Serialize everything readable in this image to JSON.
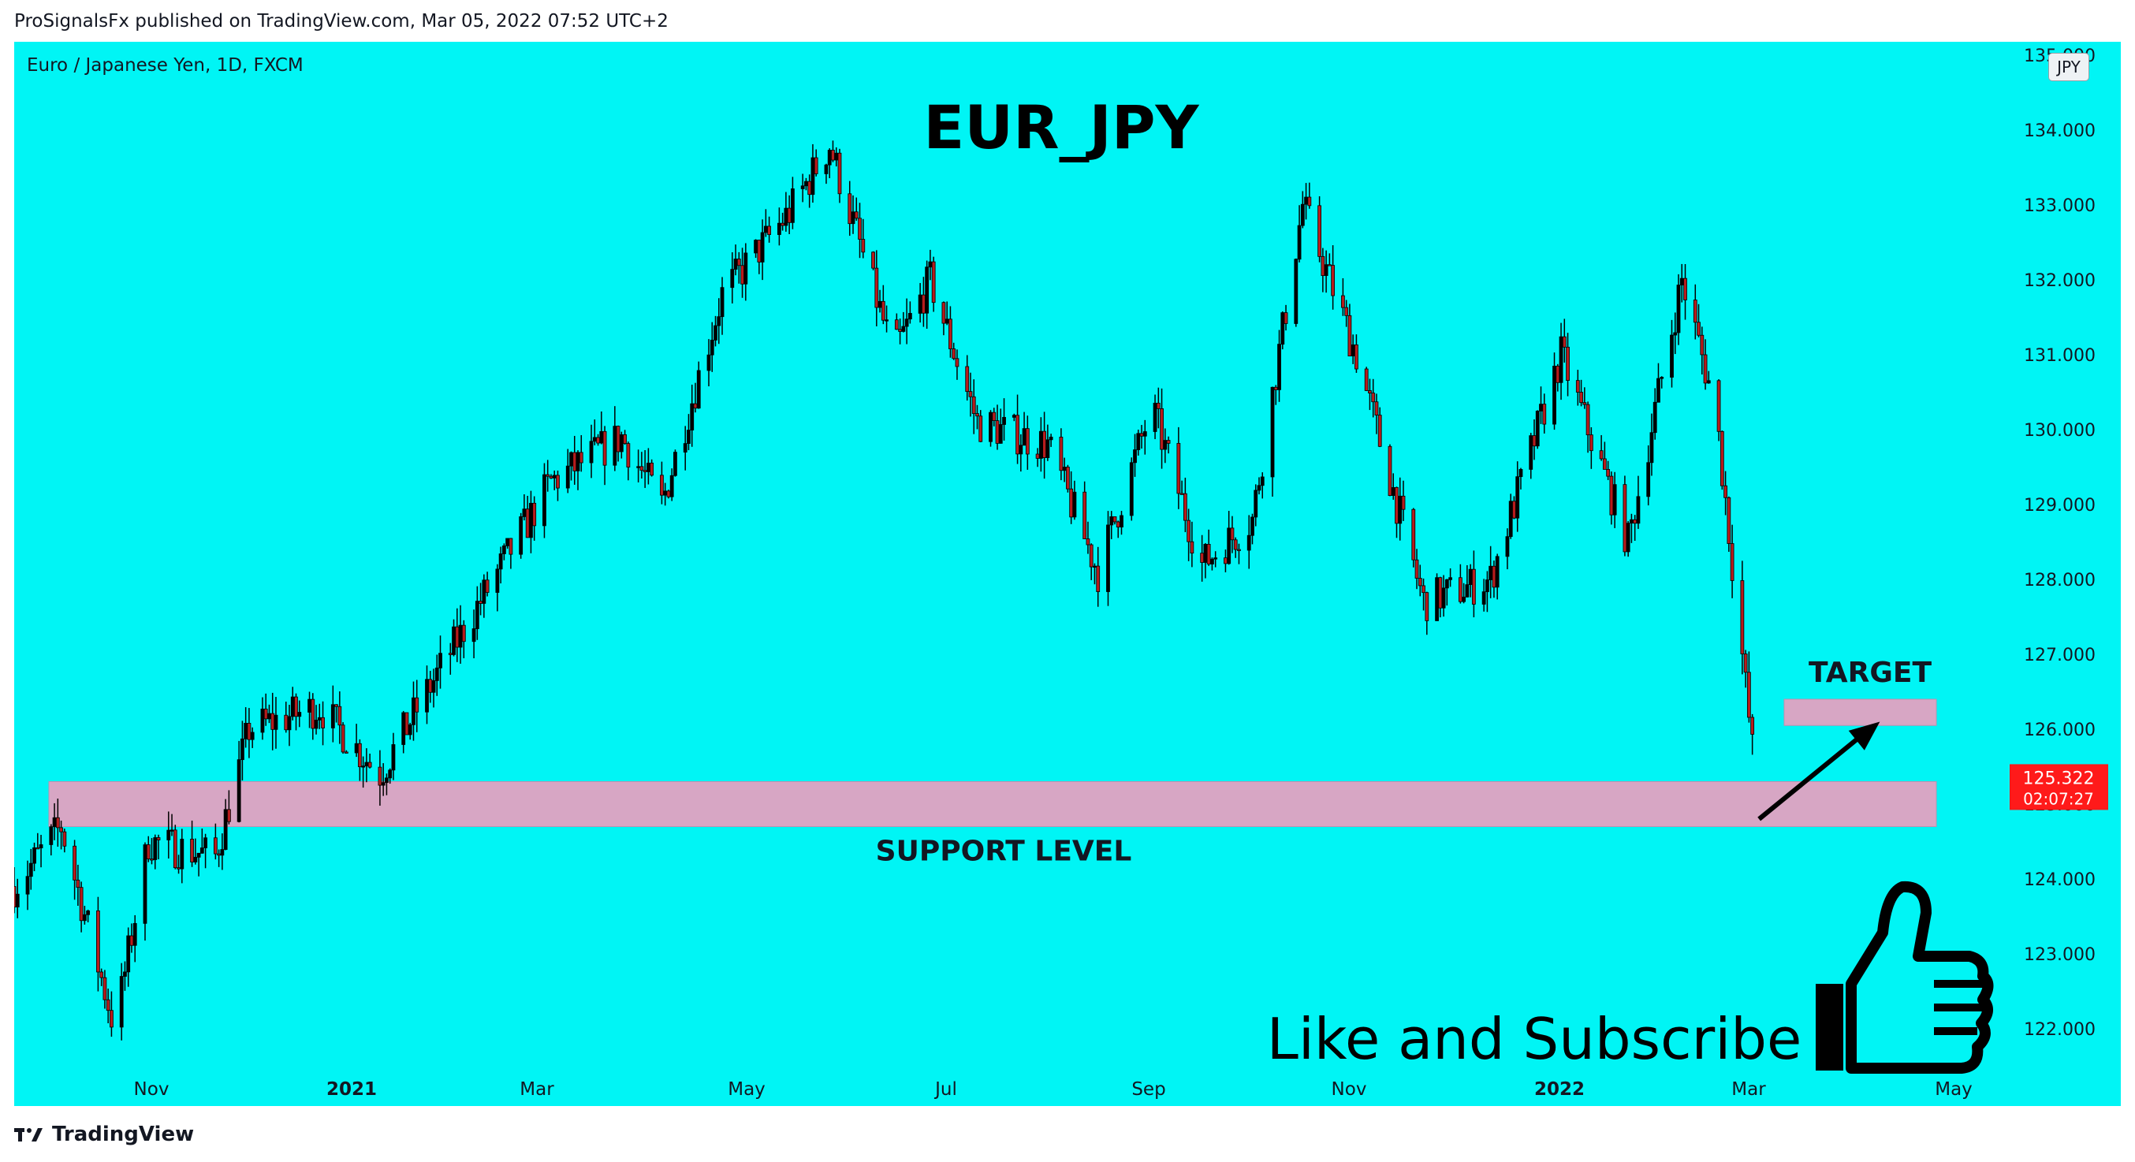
{
  "header": {
    "published": "ProSignalsFx published on TradingView.com, Mar 05, 2022 07:52 UTC+2"
  },
  "symbol": {
    "info": "Euro / Japanese Yen, 1D, FXCM",
    "currency": "JPY"
  },
  "footer": {
    "brand": "TradingView"
  },
  "colors": {
    "background": "#00f5f5",
    "candle_body": "#b71c1c",
    "wick": "#000000",
    "zone": "#d7a6c4",
    "price_tag": "#ff1a1a"
  },
  "chart_data": {
    "type": "candlestick",
    "title": "EUR_JPY",
    "xlabel": "",
    "ylabel": "",
    "ylim": [
      121.5,
      135.7
    ],
    "yticks": [
      "122.000",
      "123.000",
      "124.000",
      "125.000",
      "126.000",
      "127.000",
      "128.000",
      "129.000",
      "130.000",
      "131.000",
      "132.000",
      "133.000",
      "134.000"
    ],
    "yticks_top_partial": "135.000",
    "xticks": [
      {
        "label": "Nov",
        "bold": false
      },
      {
        "label": "2021",
        "bold": true
      },
      {
        "label": "Mar",
        "bold": false
      },
      {
        "label": "May",
        "bold": false
      },
      {
        "label": "Jul",
        "bold": false
      },
      {
        "label": "Sep",
        "bold": false
      },
      {
        "label": "Nov",
        "bold": false
      },
      {
        "label": "2022",
        "bold": true
      },
      {
        "label": "Mar",
        "bold": false
      },
      {
        "label": "May",
        "bold": false
      }
    ],
    "approx_close_path": [
      {
        "date": "2020-10-01",
        "close": 123.9
      },
      {
        "date": "2020-10-15",
        "close": 124.7
      },
      {
        "date": "2020-10-31",
        "close": 122.0
      },
      {
        "date": "2020-11-10",
        "close": 124.5
      },
      {
        "date": "2020-11-30",
        "close": 124.3
      },
      {
        "date": "2020-12-10",
        "close": 126.0
      },
      {
        "date": "2020-12-31",
        "close": 126.3
      },
      {
        "date": "2021-01-18",
        "close": 125.4
      },
      {
        "date": "2021-02-01",
        "close": 126.5
      },
      {
        "date": "2021-03-10",
        "close": 129.3
      },
      {
        "date": "2021-03-31",
        "close": 129.9
      },
      {
        "date": "2021-04-12",
        "close": 129.0
      },
      {
        "date": "2021-04-30",
        "close": 131.8
      },
      {
        "date": "2021-05-20",
        "close": 132.9
      },
      {
        "date": "2021-06-01",
        "close": 133.8
      },
      {
        "date": "2021-06-20",
        "close": 131.0
      },
      {
        "date": "2021-07-01",
        "close": 132.0
      },
      {
        "date": "2021-07-15",
        "close": 130.1
      },
      {
        "date": "2021-08-05",
        "close": 129.8
      },
      {
        "date": "2021-08-20",
        "close": 128.1
      },
      {
        "date": "2021-09-05",
        "close": 130.3
      },
      {
        "date": "2021-09-20",
        "close": 128.2
      },
      {
        "date": "2021-10-05",
        "close": 128.8
      },
      {
        "date": "2021-10-20",
        "close": 133.0
      },
      {
        "date": "2021-11-05",
        "close": 131.0
      },
      {
        "date": "2021-11-25",
        "close": 127.7
      },
      {
        "date": "2021-12-15",
        "close": 128.0
      },
      {
        "date": "2022-01-05",
        "close": 131.0
      },
      {
        "date": "2022-01-25",
        "close": 128.5
      },
      {
        "date": "2022-02-10",
        "close": 132.0
      },
      {
        "date": "2022-02-20",
        "close": 130.3
      },
      {
        "date": "2022-03-04",
        "close": 125.322
      }
    ],
    "last_price": {
      "value": "125.322",
      "countdown": "02:07:27"
    },
    "zones": [
      {
        "label": "SUPPORT LEVEL",
        "from": 124.7,
        "to": 125.3
      },
      {
        "label": "TARGET",
        "from": 126.05,
        "to": 126.4
      }
    ],
    "annotations": {
      "arrow": {
        "from_date": "2022-03-05",
        "from_price": 124.8,
        "to_date": "2022-04-10",
        "to_price": 126.1
      },
      "cta": "Like and Subscribe"
    }
  }
}
